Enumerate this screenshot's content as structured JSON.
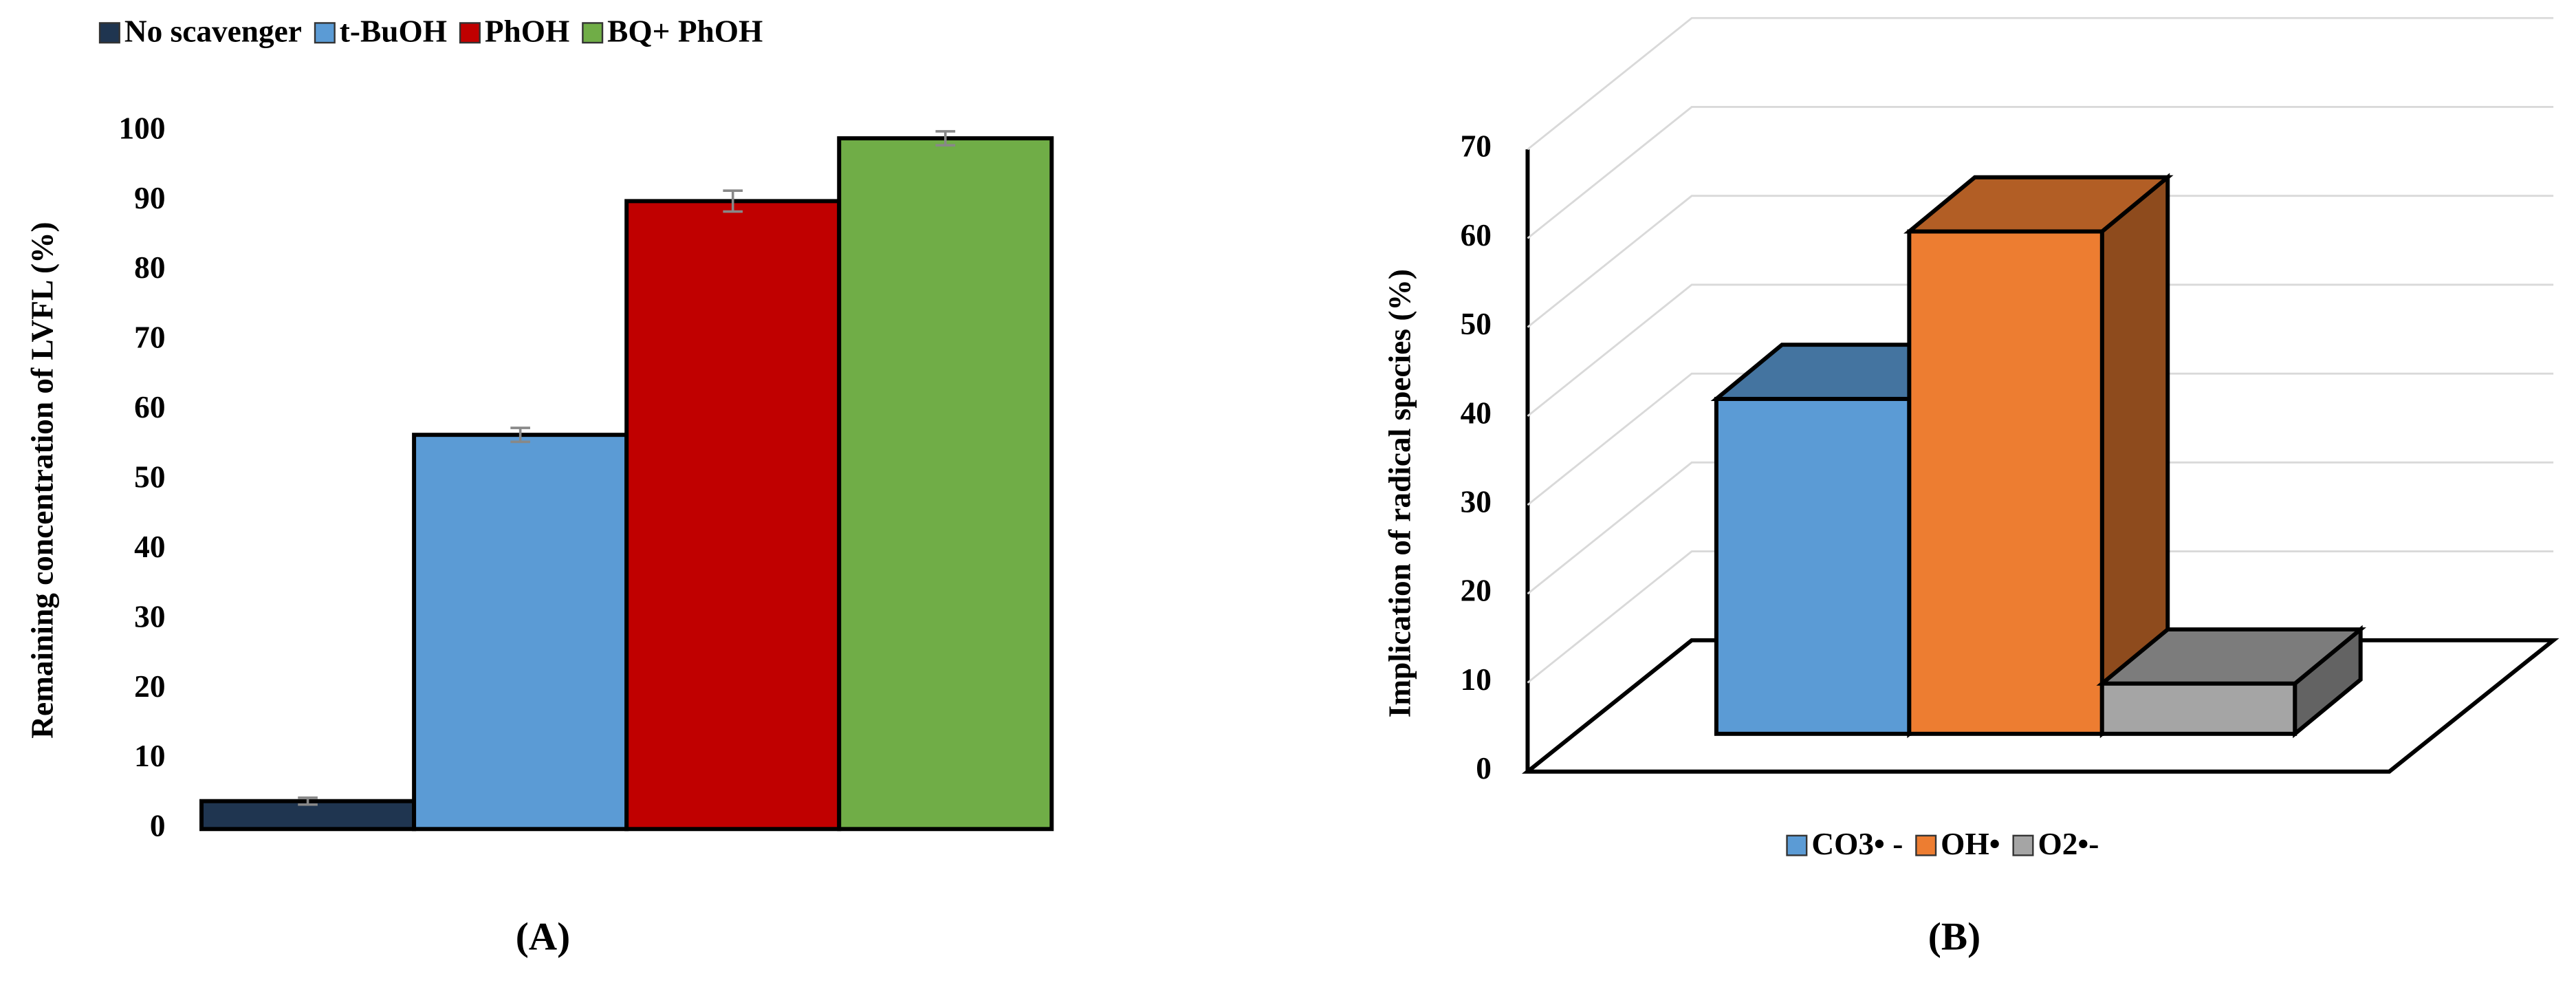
{
  "chart_data": [
    {
      "type": "bar",
      "panel_label": "(A)",
      "y_label": "Remaining concentration of LVFL (%)",
      "categories": [
        null
      ],
      "series": [
        {
          "name": "No scavenger",
          "color": "#1f3550",
          "values": [
            4
          ],
          "errors": [
            0.5
          ]
        },
        {
          "name": "t-BuOH",
          "color": "#5b9bd5",
          "values": [
            56.5
          ],
          "errors": [
            1
          ]
        },
        {
          "name": "PhOH",
          "color": "#c00000",
          "values": [
            90
          ],
          "errors": [
            1.5
          ]
        },
        {
          "name": "BQ+ PhOH",
          "color": "#70ad47",
          "values": [
            99
          ],
          "errors": [
            1
          ]
        }
      ],
      "ylim": [
        0,
        100
      ],
      "yticks": [
        0,
        10,
        20,
        30,
        40,
        50,
        60,
        70,
        80,
        90,
        100
      ],
      "legend": "top"
    },
    {
      "type": "bar3d",
      "panel_label": "(B)",
      "y_label": "Implication of radical species (%)",
      "categories": [
        null
      ],
      "series": [
        {
          "name": "CO3• -",
          "color": "#5b9bd5",
          "values": [
            40
          ]
        },
        {
          "name": "OH•",
          "color": "#ed7d31",
          "values": [
            60
          ]
        },
        {
          "name": "O2•-",
          "color": "#a5a5a5",
          "values": [
            6
          ]
        }
      ],
      "ylim": [
        0,
        70
      ],
      "yticks": [
        0,
        10,
        20,
        30,
        40,
        50,
        60,
        70
      ],
      "legend": "bottom"
    }
  ]
}
